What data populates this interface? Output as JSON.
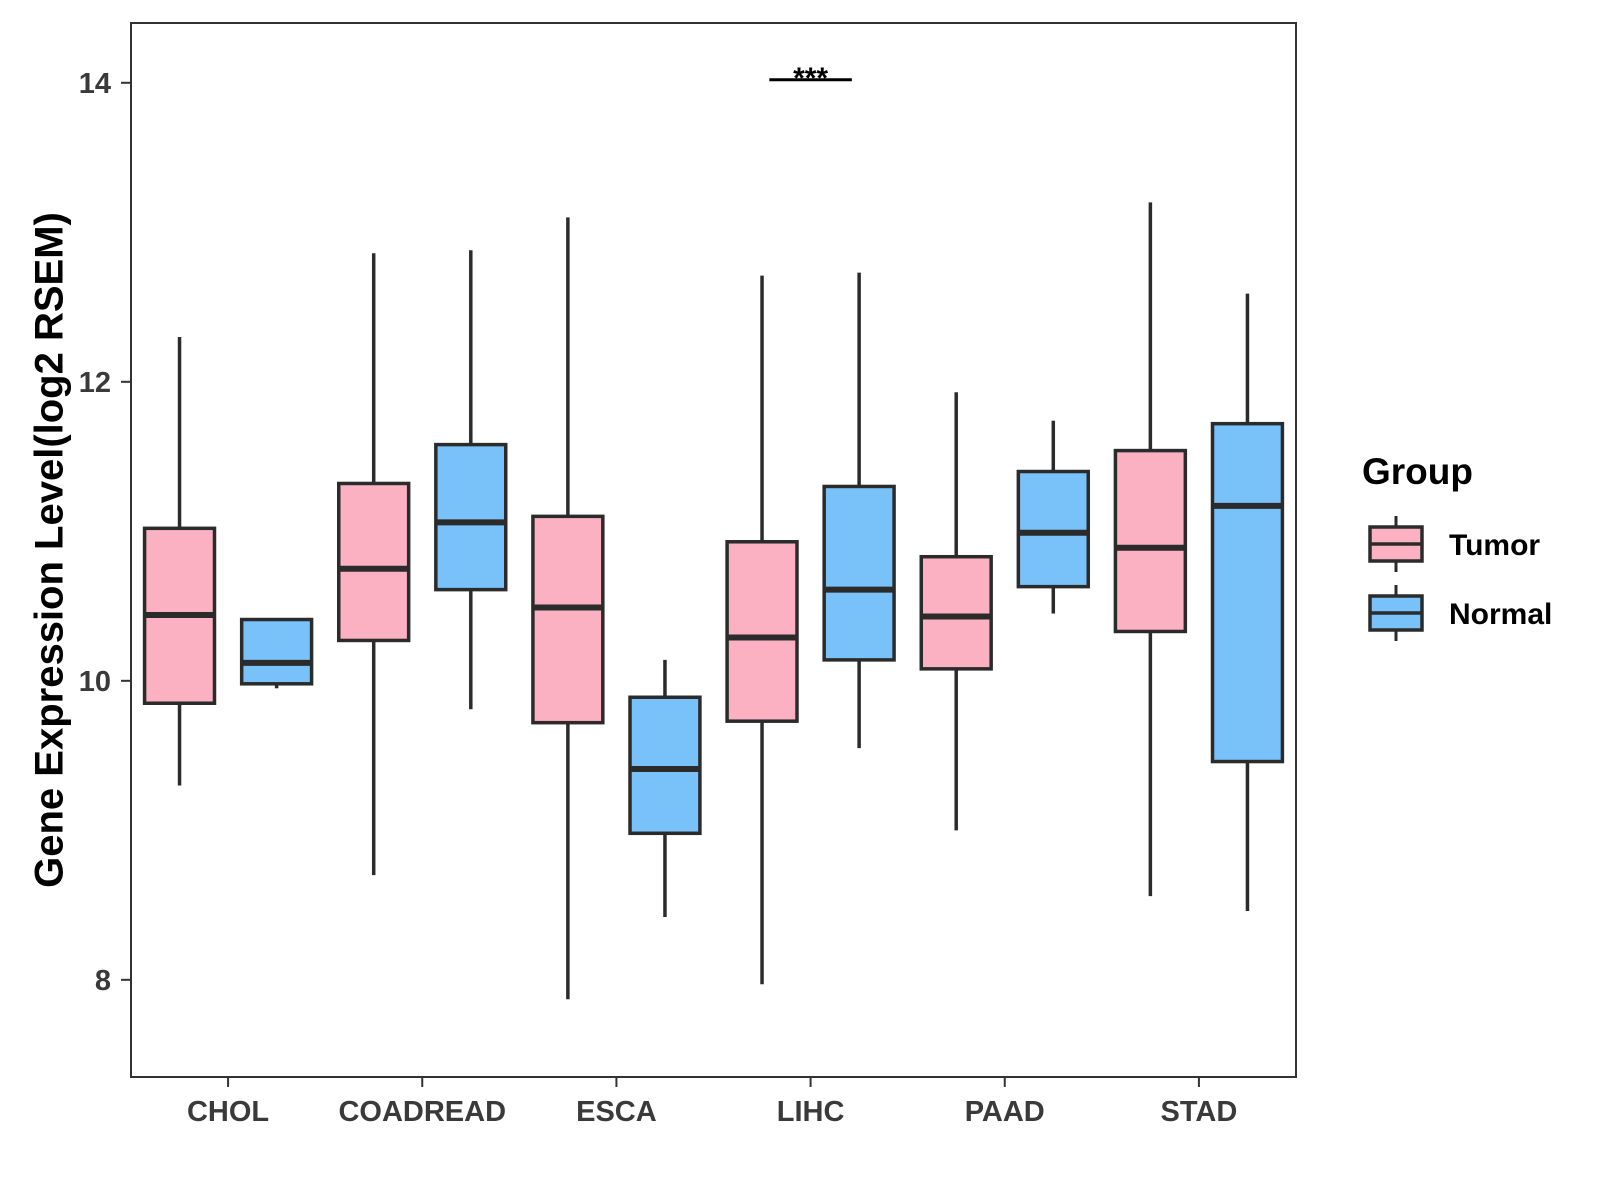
{
  "chart_data": {
    "type": "box",
    "title": "",
    "xlabel": "",
    "ylabel": "Gene Expression Level(log2 RSEM)",
    "ylim": [
      7.35,
      14.4
    ],
    "yticks": [
      8,
      10,
      12,
      14
    ],
    "ytick_labels": [
      "8",
      "10",
      "12",
      "14"
    ],
    "grid": false,
    "legend": {
      "title": "Group",
      "position": "right",
      "entries": [
        {
          "name": "Tumor",
          "color": "#FBB1C2"
        },
        {
          "name": "Normal",
          "color": "#79C2F9"
        }
      ]
    },
    "categories": [
      "CHOL",
      "COADREAD",
      "ESCA",
      "LIHC",
      "PAAD",
      "STAD"
    ],
    "series": [
      {
        "name": "Tumor",
        "color": "#FBB1C2",
        "boxes": [
          {
            "category": "CHOL",
            "whisker_low": 9.3,
            "q1": 9.85,
            "median": 10.44,
            "q3": 11.02,
            "whisker_high": 12.3
          },
          {
            "category": "COADREAD",
            "whisker_low": 8.7,
            "q1": 10.27,
            "median": 10.75,
            "q3": 11.32,
            "whisker_high": 12.86
          },
          {
            "category": "ESCA",
            "whisker_low": 7.87,
            "q1": 9.72,
            "median": 10.49,
            "q3": 11.1,
            "whisker_high": 13.1
          },
          {
            "category": "LIHC",
            "whisker_low": 7.97,
            "q1": 9.73,
            "median": 10.29,
            "q3": 10.93,
            "whisker_high": 12.71
          },
          {
            "category": "PAAD",
            "whisker_low": 9.0,
            "q1": 10.08,
            "median": 10.43,
            "q3": 10.83,
            "whisker_high": 11.93
          },
          {
            "category": "STAD",
            "whisker_low": 8.56,
            "q1": 10.33,
            "median": 10.89,
            "q3": 11.54,
            "whisker_high": 13.2
          }
        ]
      },
      {
        "name": "Normal",
        "color": "#79C2F9",
        "boxes": [
          {
            "category": "CHOL",
            "whisker_low": 9.95,
            "q1": 9.98,
            "median": 10.12,
            "q3": 10.41,
            "whisker_high": 10.41
          },
          {
            "category": "COADREAD",
            "whisker_low": 9.81,
            "q1": 10.61,
            "median": 11.06,
            "q3": 11.58,
            "whisker_high": 12.88
          },
          {
            "category": "ESCA",
            "whisker_low": 8.42,
            "q1": 8.98,
            "median": 9.41,
            "q3": 9.89,
            "whisker_high": 10.14
          },
          {
            "category": "LIHC",
            "whisker_low": 9.55,
            "q1": 10.14,
            "median": 10.61,
            "q3": 11.3,
            "whisker_high": 12.73
          },
          {
            "category": "PAAD",
            "whisker_low": 10.45,
            "q1": 10.63,
            "median": 10.99,
            "q3": 11.4,
            "whisker_high": 11.74
          },
          {
            "category": "STAD",
            "whisker_low": 8.46,
            "q1": 9.46,
            "median": 11.17,
            "q3": 11.72,
            "whisker_high": 12.59
          }
        ]
      }
    ],
    "annotations": [
      {
        "text": "***",
        "category": "LIHC",
        "y": 14.02
      }
    ]
  }
}
